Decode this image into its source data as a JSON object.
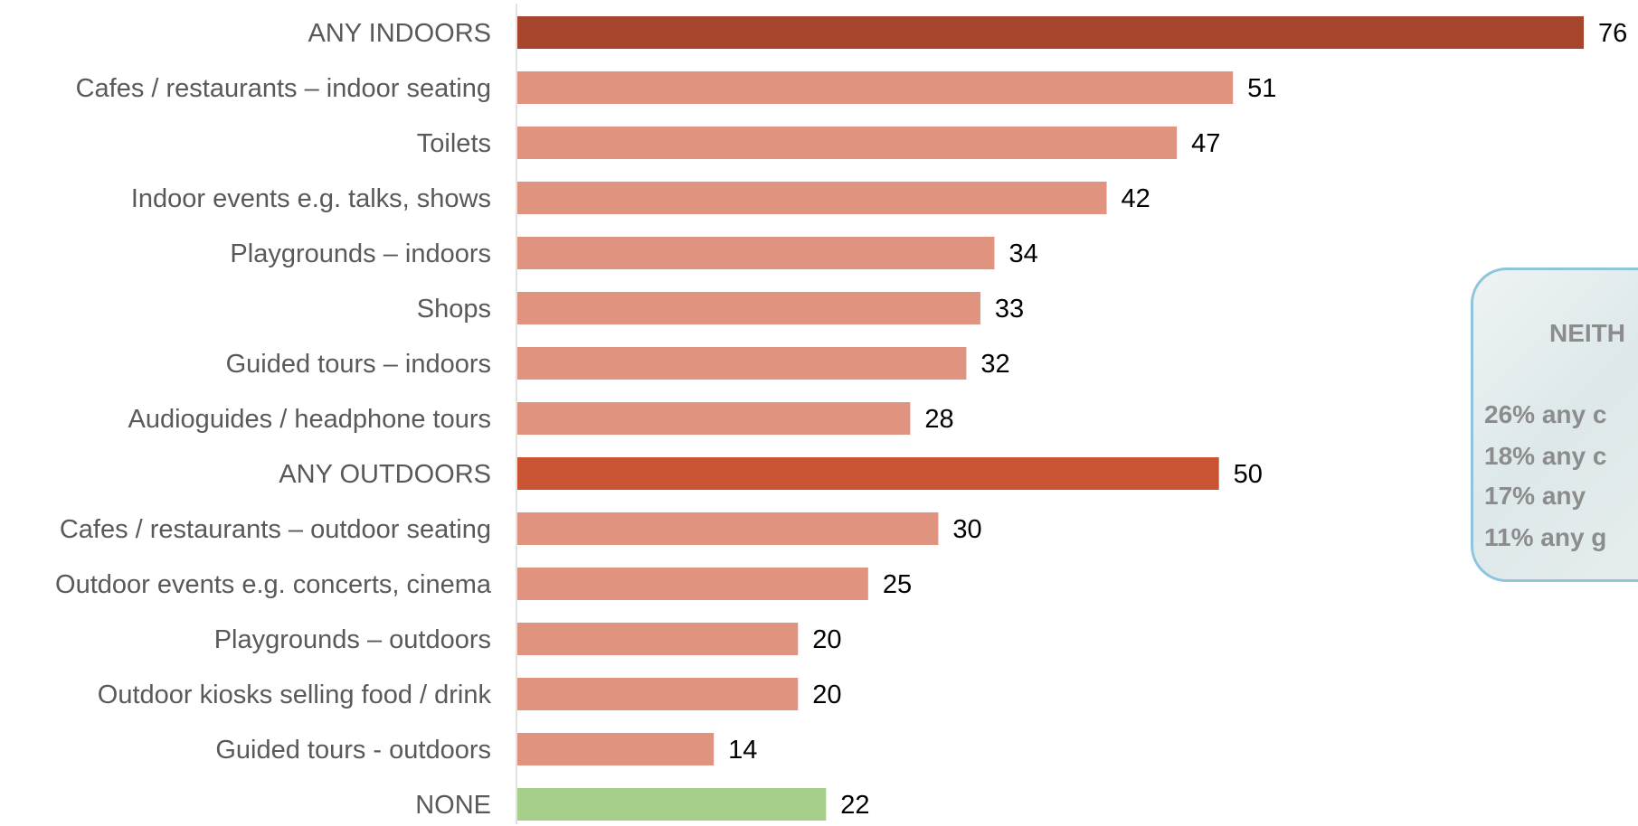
{
  "chart_data": {
    "type": "bar",
    "orientation": "horizontal",
    "categories": [
      "ANY INDOORS",
      "Cafes / restaurants – indoor seating",
      "Toilets",
      "Indoor events e.g. talks, shows",
      "Playgrounds – indoors",
      "Shops",
      "Guided tours – indoors",
      "Audioguides / headphone tours",
      "ANY OUTDOORS",
      "Cafes / restaurants – outdoor seating",
      "Outdoor events e.g. concerts, cinema",
      "Playgrounds – outdoors",
      "Outdoor kiosks selling food / drink",
      "Guided tours - outdoors",
      "NONE"
    ],
    "values": [
      76,
      51,
      47,
      42,
      34,
      33,
      32,
      28,
      50,
      30,
      25,
      20,
      20,
      14,
      22
    ],
    "bar_colors": [
      "#a8452d",
      "#e09480",
      "#e09480",
      "#e09480",
      "#e09480",
      "#e09480",
      "#e09480",
      "#e09480",
      "#c85433",
      "#e09480",
      "#e09480",
      "#e09480",
      "#e09480",
      "#e09480",
      "#a6cf8a"
    ],
    "xlim": [
      0,
      76
    ],
    "grid": false,
    "legend": "none"
  },
  "callout": {
    "title": "NEITH",
    "lines": [
      "26% any c",
      "18% any c",
      "17% any",
      "11% any g"
    ]
  },
  "colors": {
    "axis": "#d9d9d9",
    "callout_border": "#8ec5dc",
    "callout_text": "#8c8c8c"
  }
}
